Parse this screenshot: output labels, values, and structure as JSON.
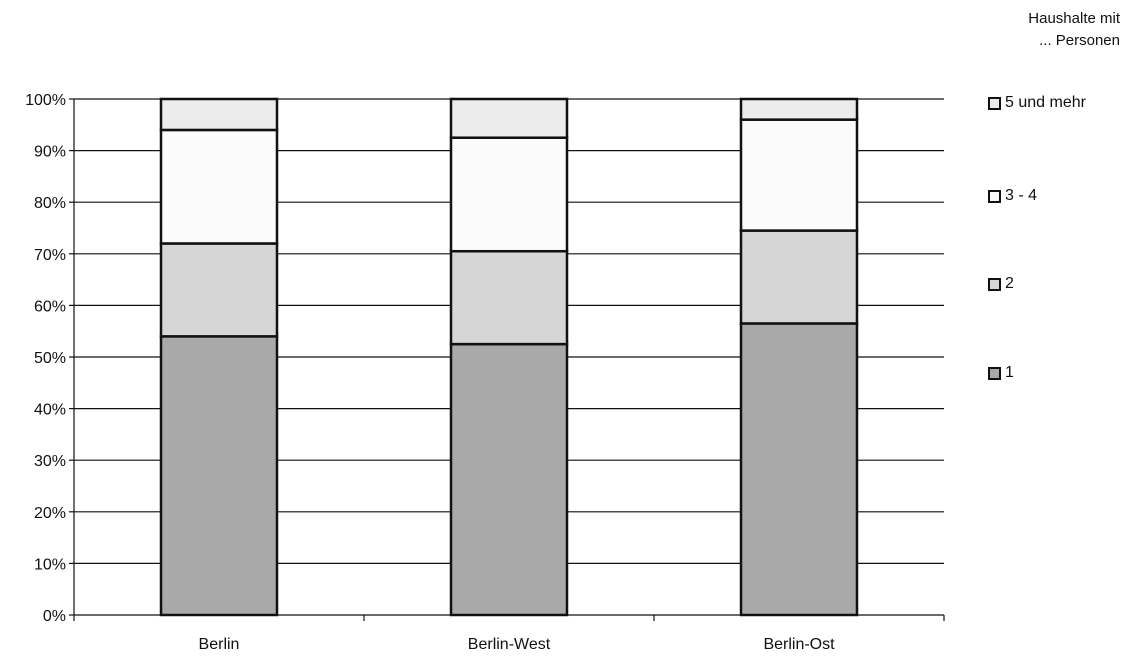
{
  "chart_data": {
    "type": "bar",
    "stacked": true,
    "categories": [
      "Berlin",
      "Berlin-West",
      "Berlin-Ost"
    ],
    "series": [
      {
        "name": "1",
        "values": [
          54,
          52.5,
          56.5
        ],
        "color": "#a9a9a9"
      },
      {
        "name": "2",
        "values": [
          18,
          18,
          18
        ],
        "color": "#d6d6d6"
      },
      {
        "name": "3 - 4",
        "values": [
          22,
          22,
          21.5
        ],
        "color": "#fbfbfb"
      },
      {
        "name": "5 und mehr",
        "values": [
          6,
          7.5,
          4
        ],
        "color": "#ececec"
      }
    ],
    "y_ticks": [
      "0%",
      "10%",
      "20%",
      "30%",
      "40%",
      "50%",
      "60%",
      "70%",
      "80%",
      "90%",
      "100%"
    ],
    "ylim": [
      0,
      100
    ],
    "grid": true,
    "legend": {
      "title_line1": "Haushalte mit",
      "title_line2": "... Personen",
      "position": "right",
      "entries": [
        "5 und mehr",
        "3 - 4",
        "2",
        "1"
      ]
    }
  }
}
